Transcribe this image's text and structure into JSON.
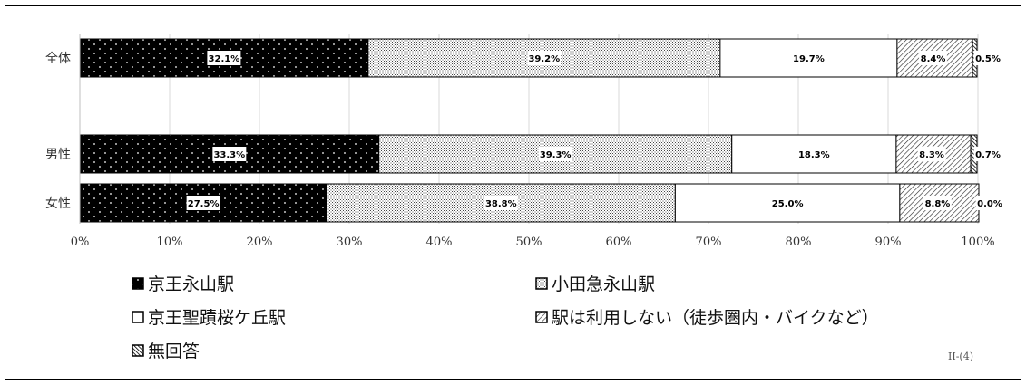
{
  "footnote": "II-(4)",
  "chart_data": {
    "type": "bar",
    "orientation": "horizontal",
    "stacked": true,
    "categories": [
      "全体",
      "男性",
      "女性"
    ],
    "xlim": [
      0,
      100
    ],
    "x_ticks": [
      "0%",
      "10%",
      "20%",
      "30%",
      "40%",
      "50%",
      "60%",
      "70%",
      "80%",
      "90%",
      "100%"
    ],
    "grid": true,
    "legend_position": "bottom",
    "series": [
      {
        "name": "京王永山駅",
        "values": [
          32.1,
          33.3,
          27.5
        ],
        "labels": [
          "32.1%",
          "33.3%",
          "27.5%"
        ],
        "pattern": "dots-on-black"
      },
      {
        "name": "小田急永山駅",
        "values": [
          39.2,
          39.3,
          38.8
        ],
        "labels": [
          "39.2%",
          "39.3%",
          "38.8%"
        ],
        "pattern": "fine-dots"
      },
      {
        "name": "京王聖蹟桜ケ丘駅",
        "values": [
          19.7,
          18.3,
          25.0
        ],
        "labels": [
          "19.7%",
          "18.3%",
          "25.0%"
        ],
        "pattern": "white"
      },
      {
        "name": "駅は利用しない（徒歩圏内・バイクなど）",
        "values": [
          8.4,
          8.3,
          8.8
        ],
        "labels": [
          "8.4%",
          "8.3%",
          "8.8%"
        ],
        "pattern": "diagonal-hatch"
      },
      {
        "name": "無回答",
        "values": [
          0.5,
          0.7,
          0.0
        ],
        "labels": [
          "0.5%",
          "0.7%",
          "0.0%"
        ],
        "pattern": "dense-diagonal"
      }
    ]
  }
}
